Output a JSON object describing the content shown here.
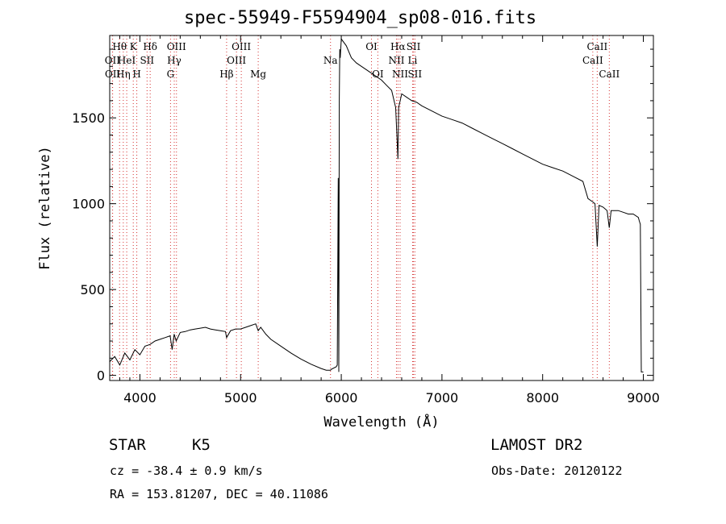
{
  "chart_data": {
    "type": "line",
    "title": "spec-55949-F5594904_sp08-016.fits",
    "xlabel": "Wavelength (Å)",
    "ylabel": "Flux (relative)",
    "xlim": [
      3700,
      9100
    ],
    "ylim": [
      -30,
      1980
    ],
    "x_ticks": [
      4000,
      5000,
      6000,
      7000,
      8000,
      9000
    ],
    "y_ticks": [
      0,
      500,
      1000,
      1500
    ],
    "grid": false,
    "series": [
      {
        "x": [
          3700,
          3750,
          3800,
          3850,
          3900,
          3950,
          4000,
          4050,
          4100,
          4150,
          4200,
          4250,
          4300,
          4320,
          4340,
          4360,
          4400,
          4450,
          4500,
          4550,
          4600,
          4650,
          4700,
          4750,
          4800,
          4850,
          4861,
          4900,
          4950,
          5000,
          5050,
          5100,
          5150,
          5175,
          5200,
          5250,
          5300,
          5400,
          5500,
          5600,
          5700,
          5800,
          5850,
          5893,
          5900,
          5950,
          5960,
          5970,
          5975,
          5980,
          5985,
          5990,
          6000,
          6050,
          6100,
          6150,
          6200,
          6250,
          6300,
          6350,
          6400,
          6450,
          6500,
          6540,
          6563,
          6570,
          6600,
          6650,
          6700,
          6750,
          6800,
          6900,
          7000,
          7100,
          7200,
          7300,
          7400,
          7500,
          7600,
          7700,
          7800,
          7900,
          8000,
          8100,
          8200,
          8300,
          8400,
          8450,
          8498,
          8520,
          8542,
          8560,
          8600,
          8640,
          8662,
          8680,
          8700,
          8750,
          8800,
          8850,
          8900,
          8950,
          8960,
          8970,
          8980,
          9000
        ],
        "y": [
          80,
          110,
          60,
          130,
          90,
          150,
          120,
          170,
          180,
          200,
          210,
          220,
          230,
          150,
          240,
          200,
          250,
          255,
          265,
          270,
          275,
          280,
          270,
          265,
          260,
          255,
          220,
          260,
          270,
          270,
          280,
          290,
          300,
          260,
          280,
          240,
          210,
          170,
          130,
          95,
          65,
          40,
          30,
          30,
          35,
          50,
          60,
          1150,
          20,
          1600,
          1900,
          1850,
          1960,
          1920,
          1850,
          1820,
          1800,
          1780,
          1760,
          1740,
          1720,
          1690,
          1660,
          1560,
          1260,
          1560,
          1640,
          1620,
          1600,
          1590,
          1570,
          1540,
          1510,
          1490,
          1470,
          1440,
          1410,
          1380,
          1350,
          1320,
          1290,
          1260,
          1230,
          1210,
          1190,
          1160,
          1130,
          1030,
          1010,
          1000,
          750,
          990,
          980,
          960,
          860,
          960,
          960,
          960,
          950,
          940,
          940,
          920,
          900,
          880,
          20,
          20
        ]
      }
    ],
    "line_markers": [
      {
        "wavelength": 3727,
        "label": "OII",
        "row": 1
      },
      {
        "wavelength": 3729,
        "label": "OII",
        "row": 2
      },
      {
        "wavelength": 3798,
        "label": "Hθ",
        "row": 0
      },
      {
        "wavelength": 3835,
        "label": "Hη",
        "row": 2
      },
      {
        "wavelength": 3869,
        "label": "HeI",
        "row": 1
      },
      {
        "wavelength": 3934,
        "label": "K",
        "row": 0
      },
      {
        "wavelength": 3969,
        "label": "H",
        "row": 2
      },
      {
        "wavelength": 4071,
        "label": "SII",
        "row": 1
      },
      {
        "wavelength": 4102,
        "label": "Hδ",
        "row": 0
      },
      {
        "wavelength": 4304,
        "label": "G",
        "row": 2
      },
      {
        "wavelength": 4341,
        "label": "Hγ",
        "row": 1
      },
      {
        "wavelength": 4363,
        "label": "OIII",
        "row": 0
      },
      {
        "wavelength": 4861,
        "label": "Hβ",
        "row": 2
      },
      {
        "wavelength": 4959,
        "label": "OIII",
        "row": 1
      },
      {
        "wavelength": 5007,
        "label": "OIII",
        "row": 0
      },
      {
        "wavelength": 5175,
        "label": "Mg",
        "row": 2
      },
      {
        "wavelength": 5893,
        "label": "Na",
        "row": 1
      },
      {
        "wavelength": 6300,
        "label": "OI",
        "row": 0
      },
      {
        "wavelength": 6363,
        "label": "OI",
        "row": 2
      },
      {
        "wavelength": 6548,
        "label": "NII",
        "row": 1
      },
      {
        "wavelength": 6563,
        "label": "Hα",
        "row": 0
      },
      {
        "wavelength": 6584,
        "label": "NII",
        "row": 2
      },
      {
        "wavelength": 6708,
        "label": "Li",
        "row": 1
      },
      {
        "wavelength": 6717,
        "label": "SII",
        "row": 0
      },
      {
        "wavelength": 6731,
        "label": "SII",
        "row": 2
      },
      {
        "wavelength": 8498,
        "label": "CaII",
        "row": 1
      },
      {
        "wavelength": 8542,
        "label": "CaII",
        "row": 0
      },
      {
        "wavelength": 8662,
        "label": "CaII",
        "row": 2
      }
    ],
    "colors": {
      "spectrum": "#000000",
      "markers": "#d43030",
      "axes": "#000000"
    }
  },
  "info": {
    "object_class": "STAR",
    "subclass": "K5",
    "survey": "LAMOST DR2",
    "redshift": "cz = -38.4 ± 0.9 km/s",
    "obs_date": "Obs-Date: 20120122",
    "coords": "RA = 153.81207, DEC =  40.11086"
  }
}
